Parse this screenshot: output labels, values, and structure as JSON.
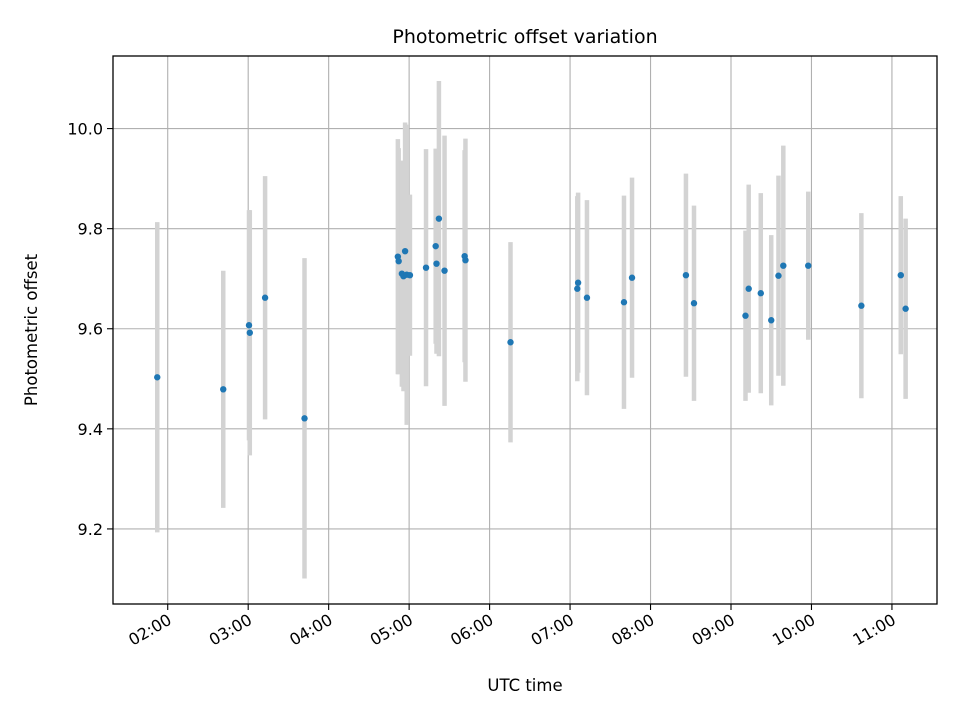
{
  "chart_data": {
    "type": "scatter",
    "title": "Photometric offset variation",
    "xlabel": "UTC time",
    "ylabel": "Photometric offset",
    "x_unit": "hours",
    "xlim": [
      1.32,
      11.56
    ],
    "ylim": [
      9.05,
      10.145
    ],
    "x_ticks": [
      {
        "value": 2,
        "label": "02:00"
      },
      {
        "value": 3,
        "label": "03:00"
      },
      {
        "value": 4,
        "label": "04:00"
      },
      {
        "value": 5,
        "label": "05:00"
      },
      {
        "value": 6,
        "label": "06:00"
      },
      {
        "value": 7,
        "label": "07:00"
      },
      {
        "value": 8,
        "label": "08:00"
      },
      {
        "value": 9,
        "label": "09:00"
      },
      {
        "value": 10,
        "label": "10:00"
      },
      {
        "value": 11,
        "label": "11:00"
      }
    ],
    "y_ticks": [
      {
        "value": 9.2,
        "label": "9.2"
      },
      {
        "value": 9.4,
        "label": "9.4"
      },
      {
        "value": 9.6,
        "label": "9.6"
      },
      {
        "value": 9.8,
        "label": "9.8"
      },
      {
        "value": 10.0,
        "label": "10.0"
      }
    ],
    "grid": true,
    "marker_color": "#1f77b4",
    "errorbar_color": "#d3d3d3",
    "points": [
      {
        "x": 1.87,
        "y": 9.503,
        "err": 0.31
      },
      {
        "x": 2.69,
        "y": 9.479,
        "err": 0.237
      },
      {
        "x": 3.01,
        "y": 9.607,
        "err": 0.23
      },
      {
        "x": 3.02,
        "y": 9.592,
        "err": 0.245
      },
      {
        "x": 3.21,
        "y": 9.662,
        "err": 0.243
      },
      {
        "x": 3.7,
        "y": 9.421,
        "err": 0.32
      },
      {
        "x": 4.86,
        "y": 9.744,
        "err": 0.235
      },
      {
        "x": 4.87,
        "y": 9.735,
        "err": 0.226
      },
      {
        "x": 4.91,
        "y": 9.71,
        "err": 0.226
      },
      {
        "x": 4.93,
        "y": 9.705,
        "err": 0.23
      },
      {
        "x": 4.95,
        "y": 9.755,
        "err": 0.257
      },
      {
        "x": 4.97,
        "y": 9.708,
        "err": 0.3
      },
      {
        "x": 5.01,
        "y": 9.707,
        "err": 0.161
      },
      {
        "x": 5.21,
        "y": 9.722,
        "err": 0.237
      },
      {
        "x": 5.33,
        "y": 9.765,
        "err": 0.195
      },
      {
        "x": 5.34,
        "y": 9.73,
        "err": 0.18
      },
      {
        "x": 5.37,
        "y": 9.82,
        "err": 0.275
      },
      {
        "x": 5.44,
        "y": 9.716,
        "err": 0.27
      },
      {
        "x": 5.69,
        "y": 9.745,
        "err": 0.212
      },
      {
        "x": 5.7,
        "y": 9.737,
        "err": 0.243
      },
      {
        "x": 6.26,
        "y": 9.573,
        "err": 0.2
      },
      {
        "x": 7.1,
        "y": 9.692,
        "err": 0.18
      },
      {
        "x": 7.09,
        "y": 9.68,
        "err": 0.185
      },
      {
        "x": 7.21,
        "y": 9.662,
        "err": 0.195
      },
      {
        "x": 7.67,
        "y": 9.653,
        "err": 0.213
      },
      {
        "x": 7.77,
        "y": 9.702,
        "err": 0.2
      },
      {
        "x": 8.44,
        "y": 9.707,
        "err": 0.203
      },
      {
        "x": 8.54,
        "y": 9.651,
        "err": 0.195
      },
      {
        "x": 9.18,
        "y": 9.626,
        "err": 0.17
      },
      {
        "x": 9.22,
        "y": 9.68,
        "err": 0.208
      },
      {
        "x": 9.37,
        "y": 9.671,
        "err": 0.2
      },
      {
        "x": 9.5,
        "y": 9.617,
        "err": 0.17
      },
      {
        "x": 9.59,
        "y": 9.706,
        "err": 0.2
      },
      {
        "x": 9.65,
        "y": 9.726,
        "err": 0.24
      },
      {
        "x": 9.96,
        "y": 9.726,
        "err": 0.148
      },
      {
        "x": 10.62,
        "y": 9.646,
        "err": 0.185
      },
      {
        "x": 11.11,
        "y": 9.707,
        "err": 0.158
      },
      {
        "x": 11.17,
        "y": 9.64,
        "err": 0.18
      }
    ]
  }
}
